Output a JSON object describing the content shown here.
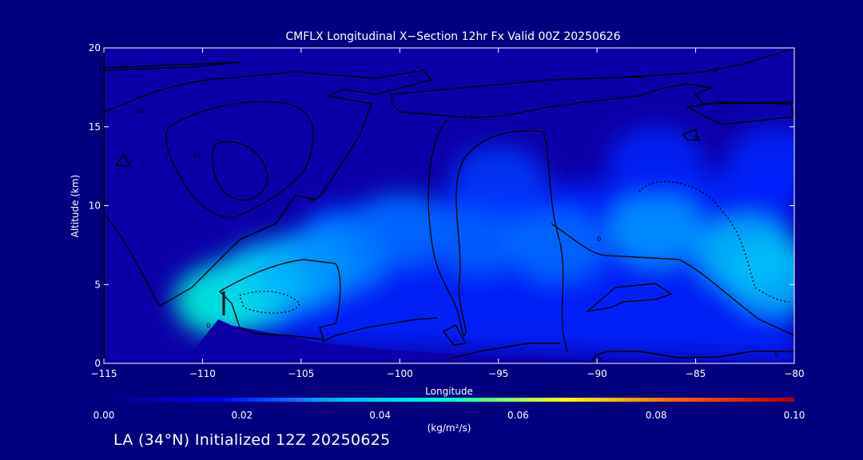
{
  "chart_data": {
    "type": "heatmap",
    "title": "CMFLX Longitudinal X−Section 12hr  Fx Valid 00Z 20250626",
    "xlabel": "Longitude",
    "ylabel": "Altitude (km)",
    "xlim": [
      -115,
      -80
    ],
    "ylim": [
      0,
      20
    ],
    "x_ticks": [
      {
        "value": -115,
        "label": "−115"
      },
      {
        "value": -110,
        "label": "−110"
      },
      {
        "value": -105,
        "label": "−105"
      },
      {
        "value": -100,
        "label": "−100"
      },
      {
        "value": -95,
        "label": "−95"
      },
      {
        "value": -90,
        "label": "−90"
      },
      {
        "value": -85,
        "label": "−85"
      },
      {
        "value": -80,
        "label": "−80"
      }
    ],
    "y_ticks": [
      {
        "value": 0,
        "label": "0"
      },
      {
        "value": 5,
        "label": "5"
      },
      {
        "value": 10,
        "label": "10"
      },
      {
        "value": 15,
        "label": "15"
      },
      {
        "value": 20,
        "label": "20"
      }
    ],
    "colorbar": {
      "label": "(kg/m²/s)",
      "range": [
        0.0,
        0.1
      ],
      "ticks": [
        {
          "value": 0.0,
          "label": "0.00"
        },
        {
          "value": 0.02,
          "label": "0.02"
        },
        {
          "value": 0.04,
          "label": "0.04"
        },
        {
          "value": 0.06,
          "label": "0.06"
        },
        {
          "value": 0.08,
          "label": "0.08"
        },
        {
          "value": 0.1,
          "label": "0.10"
        }
      ],
      "colors": [
        "#000080",
        "#0000ff",
        "#00b4ff",
        "#00ffd0",
        "#ffff00",
        "#ff6000",
        "#b00000"
      ]
    },
    "terrain_surface": [
      {
        "lon": -115,
        "alt": 0.0
      },
      {
        "lon": -111,
        "alt": 0.0
      },
      {
        "lon": -109.2,
        "alt": 2.8
      },
      {
        "lon": -108.5,
        "alt": 2.4
      },
      {
        "lon": -106,
        "alt": 1.8
      },
      {
        "lon": -104,
        "alt": 1.3
      },
      {
        "lon": -100,
        "alt": 0.8
      },
      {
        "lon": -95,
        "alt": 0.4
      },
      {
        "lon": -90,
        "alt": 0.2
      },
      {
        "lon": -85,
        "alt": 0.1
      },
      {
        "lon": -80,
        "alt": 0.0
      }
    ],
    "flux_blobs": [
      {
        "lon": -109,
        "alt": 4.0,
        "value": 0.05
      },
      {
        "lon": -108,
        "alt": 4.5,
        "value": 0.042
      },
      {
        "lon": -106.5,
        "alt": 5.5,
        "value": 0.04
      },
      {
        "lon": -105,
        "alt": 6.0,
        "value": 0.033
      },
      {
        "lon": -103,
        "alt": 7.0,
        "value": 0.03
      },
      {
        "lon": -100,
        "alt": 8.5,
        "value": 0.027
      },
      {
        "lon": -96,
        "alt": 8.0,
        "value": 0.026
      },
      {
        "lon": -92,
        "alt": 7.5,
        "value": 0.027
      },
      {
        "lon": -87,
        "alt": 8.5,
        "value": 0.031
      },
      {
        "lon": -82.5,
        "alt": 7.0,
        "value": 0.036
      },
      {
        "lon": -81,
        "alt": 5.5,
        "value": 0.036
      },
      {
        "lon": -95,
        "alt": 11.5,
        "value": 0.022
      },
      {
        "lon": -87,
        "alt": 12.7,
        "value": 0.02
      },
      {
        "lon": -81,
        "alt": 12.7,
        "value": 0.02
      }
    ],
    "contour_labels": [
      {
        "lon": -114,
        "alt": 18.9,
        "text": "0"
      },
      {
        "lon": -113.2,
        "alt": 16.0,
        "text": "10"
      },
      {
        "lon": -110.3,
        "alt": 13.2,
        "text": "15"
      },
      {
        "lon": -104.5,
        "alt": 10.4,
        "text": "10"
      },
      {
        "lon": -96.4,
        "alt": 15.6,
        "text": "0"
      },
      {
        "lon": -89.9,
        "alt": 7.9,
        "text": "0"
      },
      {
        "lon": -85,
        "alt": 14.3,
        "text": "0"
      },
      {
        "lon": -84,
        "alt": 18.6,
        "text": "0"
      },
      {
        "lon": -109.7,
        "alt": 2.4,
        "text": "0"
      },
      {
        "lon": -89.9,
        "alt": 0.3,
        "text": "0"
      },
      {
        "lon": -80.9,
        "alt": 0.6,
        "text": "0"
      }
    ]
  },
  "footer": {
    "text": "LA (34°N) Initialized 12Z 20250625"
  }
}
